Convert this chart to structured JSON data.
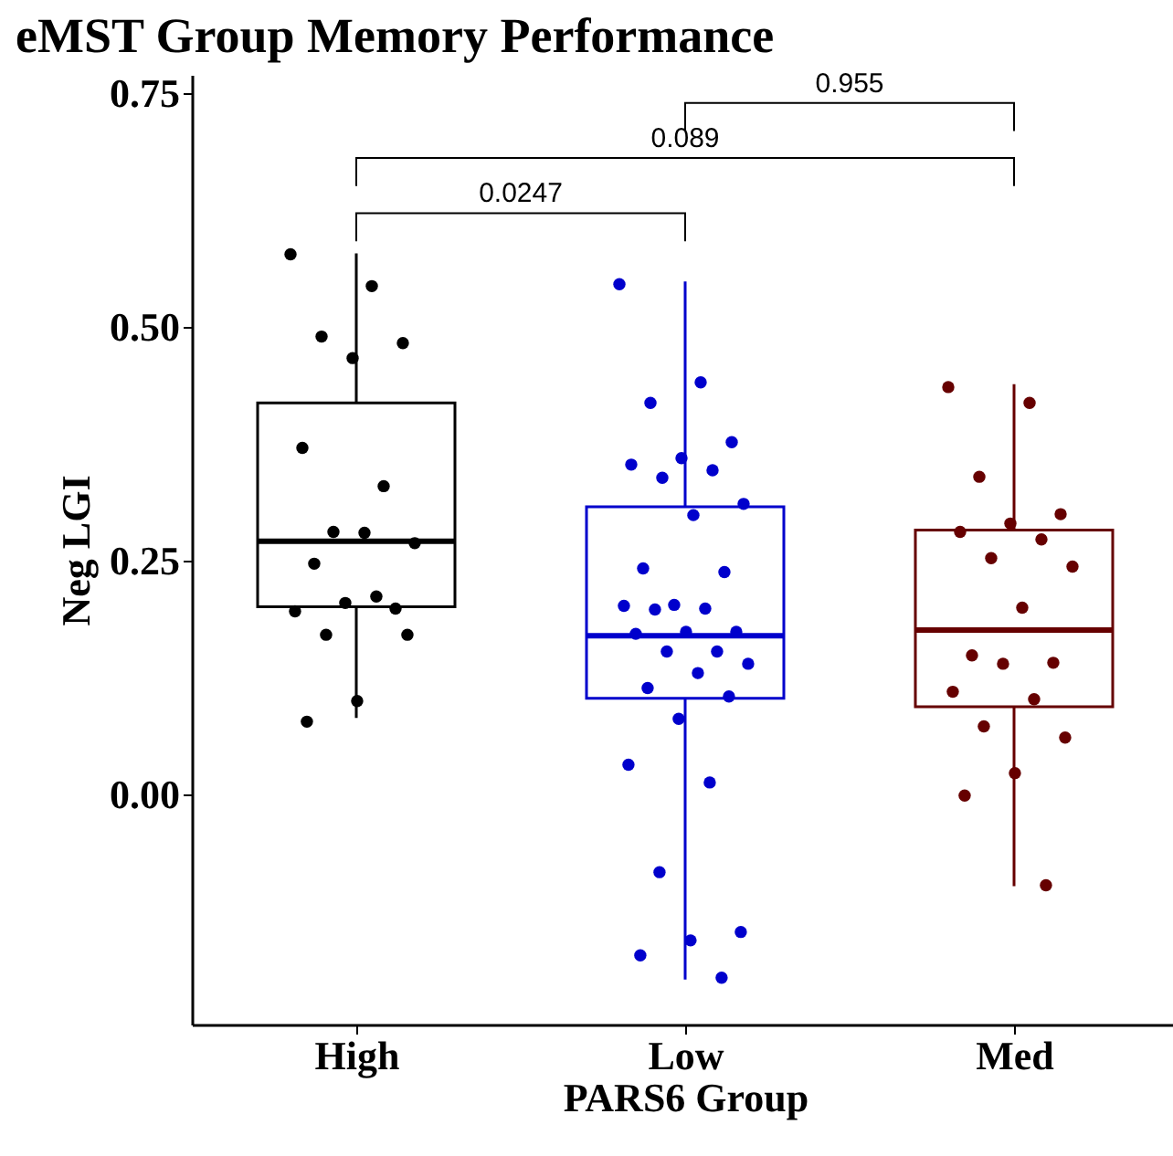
{
  "chart_data": {
    "type": "box",
    "title": "eMST Group Memory Performance",
    "xlabel": "PARS6 Group",
    "ylabel": "Neg LGI",
    "categories": [
      "High",
      "Low",
      "Med"
    ],
    "colors": [
      "#000000",
      "#0000cc",
      "#660000"
    ],
    "boxes": [
      {
        "low": 0.082,
        "q1": 0.201,
        "median": 0.271,
        "q3": 0.419,
        "high": 0.579
      },
      {
        "low": -0.198,
        "q1": 0.103,
        "median": 0.17,
        "q3": 0.308,
        "high": 0.549
      },
      {
        "low": -0.098,
        "q1": 0.094,
        "median": 0.176,
        "q3": 0.283,
        "high": 0.439
      }
    ],
    "series": [
      {
        "type": "scatter",
        "color": "#000000",
        "x": [
          "High",
          "High",
          "High",
          "High",
          "High",
          "High",
          "High",
          "High",
          "High",
          "High",
          "High",
          "High",
          "High",
          "High",
          "High",
          "High",
          "High",
          "High",
          "High"
        ],
        "values": [
          0.578,
          0.544,
          0.49,
          0.483,
          0.467,
          0.371,
          0.33,
          0.281,
          0.269,
          0.28,
          0.247,
          0.199,
          0.205,
          0.196,
          0.212,
          0.171,
          0.171,
          0.1,
          0.078
        ]
      },
      {
        "type": "scatter",
        "color": "#0000cc",
        "x": [
          "Low",
          "Low",
          "Low",
          "Low",
          "Low",
          "Low",
          "Low",
          "Low",
          "Low",
          "Low",
          "Low",
          "Low",
          "Low",
          "Low",
          "Low",
          "Low",
          "Low",
          "Low",
          "Low",
          "Low",
          "Low",
          "Low",
          "Low",
          "Low",
          "Low",
          "Low",
          "Low",
          "Low",
          "Low",
          "Low",
          "Low",
          "Low",
          "Low"
        ],
        "values": [
          0.546,
          0.441,
          0.419,
          0.377,
          0.36,
          0.353,
          0.347,
          0.339,
          0.311,
          0.299,
          0.242,
          0.238,
          0.203,
          0.202,
          0.199,
          0.198,
          0.174,
          0.174,
          0.172,
          0.153,
          0.153,
          0.14,
          0.13,
          0.114,
          0.105,
          0.081,
          0.032,
          0.013,
          -0.083,
          -0.147,
          -0.156,
          -0.172,
          -0.196
        ]
      },
      {
        "type": "scatter",
        "color": "#660000",
        "x": [
          "Med",
          "Med",
          "Med",
          "Med",
          "Med",
          "Med",
          "Med",
          "Med",
          "Med",
          "Med",
          "Med",
          "Med",
          "Med",
          "Med",
          "Med",
          "Med",
          "Med",
          "Med",
          "Med",
          "Med"
        ],
        "values": [
          0.436,
          0.419,
          0.34,
          0.3,
          0.29,
          0.281,
          0.273,
          0.253,
          0.244,
          0.2,
          0.149,
          0.141,
          0.14,
          0.11,
          0.102,
          0.073,
          0.061,
          0.023,
          -0.001,
          -0.097
        ]
      }
    ],
    "ylim": [
      -0.246,
      0.77
    ],
    "yticks": [
      {
        "value": 0,
        "label": "0.00"
      },
      {
        "value": 0.25,
        "label": "0.25"
      },
      {
        "value": 0.5,
        "label": "0.50"
      },
      {
        "value": 0.75,
        "label": "0.75"
      }
    ],
    "annotations": [
      "0.0247",
      "0.089",
      "0.955"
    ]
  }
}
